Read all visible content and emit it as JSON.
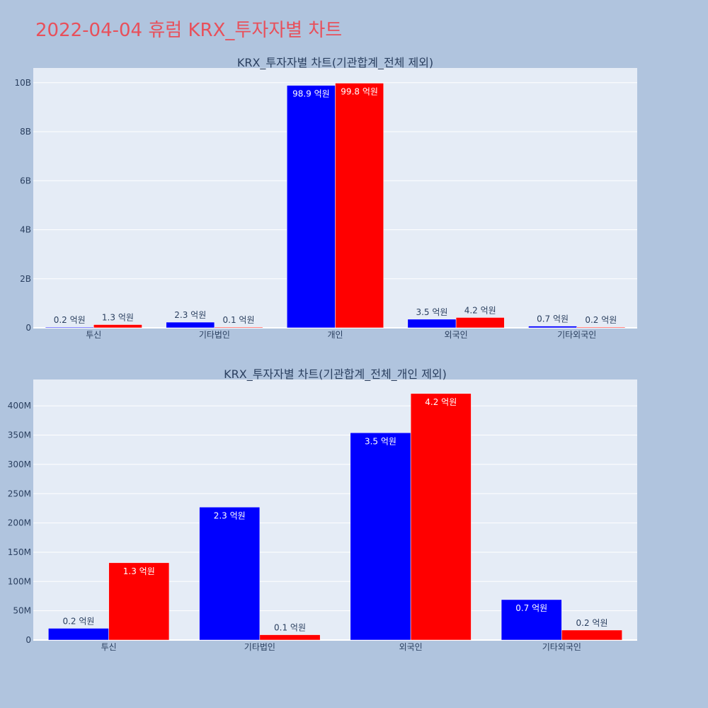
{
  "title": "2022-04-04 휴럼 KRX_투자자별 차트",
  "colors": {
    "buy": "#0000ff",
    "sell": "#ff0000",
    "plot_bg": "#e5ecf6",
    "page_bg": "#b0c4de"
  },
  "chart_data": [
    {
      "type": "bar",
      "title": "KRX_투자자별 차트(기관합계_전체 제외)",
      "categories": [
        "투신",
        "기타법인",
        "개인",
        "외국인",
        "기타외국인"
      ],
      "series": [
        {
          "values": [
            20000000,
            230000000,
            9890000000,
            350000000,
            70000000
          ],
          "labels": [
            "0.2 억원",
            "2.3 억원",
            "98.9 억원",
            "3.5 억원",
            "0.7 억원"
          ]
        },
        {
          "values": [
            130000000,
            10000000,
            9980000000,
            420000000,
            20000000
          ],
          "labels": [
            "1.3 억원",
            "0.1 억원",
            "99.8 억원",
            "4.2 억원",
            "0.2 억원"
          ]
        }
      ],
      "ylim": [
        0,
        10600000000
      ],
      "yticks": [
        0,
        2000000000,
        4000000000,
        6000000000,
        8000000000,
        10000000000
      ],
      "ytick_labels": [
        "0",
        "2B",
        "4B",
        "6B",
        "8B",
        "10B"
      ]
    },
    {
      "type": "bar",
      "title": "KRX_투자자별 차트(기관합계_전체_개인 제외)",
      "categories": [
        "투신",
        "기타법인",
        "외국인",
        "기타외국인"
      ],
      "series": [
        {
          "values": [
            20000000,
            227000000,
            354000000,
            69000000
          ],
          "labels": [
            "0.2 억원",
            "2.3 억원",
            "3.5 억원",
            "0.7 억원"
          ]
        },
        {
          "values": [
            132000000,
            9000000,
            421000000,
            17000000
          ],
          "labels": [
            "1.3 억원",
            "0.1 억원",
            "4.2 억원",
            "0.2 억원"
          ]
        }
      ],
      "ylim": [
        0,
        445000000
      ],
      "yticks": [
        0,
        50000000,
        100000000,
        150000000,
        200000000,
        250000000,
        300000000,
        350000000,
        400000000
      ],
      "ytick_labels": [
        "0",
        "50M",
        "100M",
        "150M",
        "200M",
        "250M",
        "300M",
        "350M",
        "400M"
      ]
    }
  ]
}
